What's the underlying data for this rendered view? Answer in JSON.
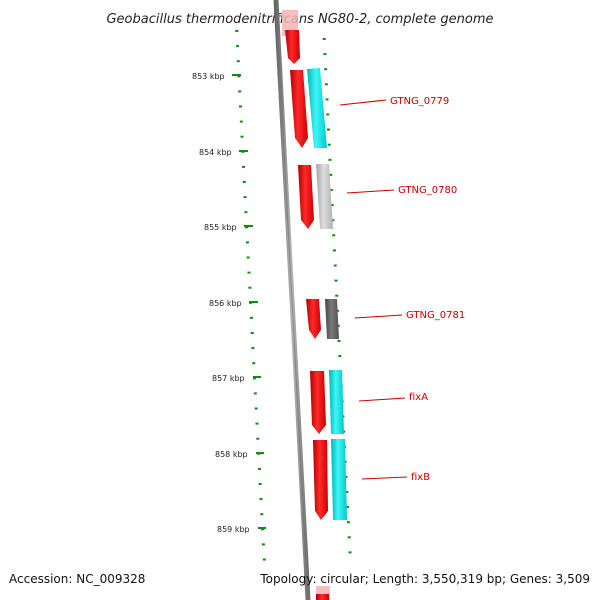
{
  "title": "Geobacillus thermodenitrificans NG80-2, complete genome",
  "footer": {
    "accession": "Accession: NC_009328",
    "topology": "Topology: circular; Length: 3,550,319 bp; Genes: 3,509"
  },
  "ticks": [
    "853 kbp",
    "854 kbp",
    "855 kbp",
    "856 kbp",
    "857 kbp",
    "858 kbp",
    "859 kbp"
  ],
  "genes": [
    {
      "label": "GTNG_0779",
      "feature_color": "#19e0e0"
    },
    {
      "label": "GTNG_0780",
      "feature_color": "#bdbdbd"
    },
    {
      "label": "GTNG_0781",
      "feature_color": "#5c5c5c"
    },
    {
      "label": "fixA",
      "feature_color": "#19e0e0"
    },
    {
      "label": "fixB",
      "feature_color": "#19e0e0"
    }
  ],
  "colors": {
    "cds": "#ee0000",
    "tick": "#138b13",
    "label": "#cc0000",
    "backbone": "#8a8a8a"
  }
}
